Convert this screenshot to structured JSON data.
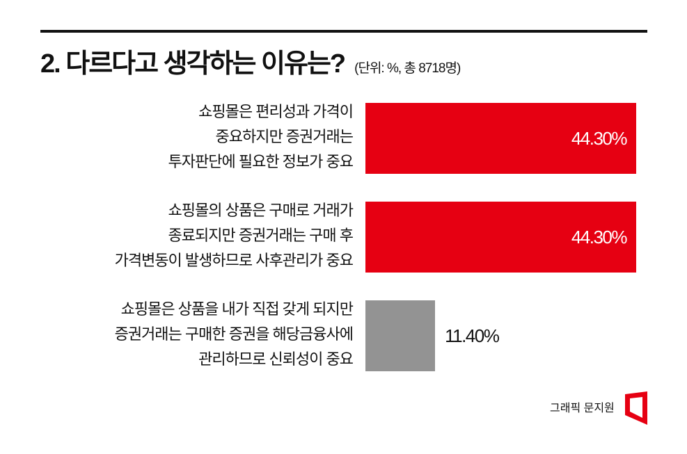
{
  "title": "2. 다르다고 생각하는 이유는?",
  "unit_note": "(단위: %, 총 8718명)",
  "credit": "그래픽 문지원",
  "colors": {
    "highlight": "#e60012",
    "other": "#939393",
    "text": "#111111",
    "value_on_bar": "#ffffff"
  },
  "chart_data": {
    "type": "bar",
    "orientation": "horizontal",
    "title": "2. 다르다고 생각하는 이유는?",
    "unit": "%",
    "total_respondents": 8718,
    "categories": [
      [
        "쇼핑몰은 편리성과 가격이",
        "중요하지만 증권거래는",
        "투자판단에 필요한 정보가 중요"
      ],
      [
        "쇼핑몰의 상품은 구매로 거래가",
        "종료되지만 증권거래는 구매 후",
        "가격변동이 발생하므로 사후관리가 중요"
      ],
      [
        "쇼핑몰은 상품을 내가 직접 갖게 되지만",
        "증권거래는 구매한 증권을 해당금융사에",
        "관리하므로 신뢰성이 중요"
      ]
    ],
    "values": [
      44.3,
      44.3,
      11.4
    ],
    "value_labels": [
      "44.30%",
      "44.30%",
      "11.40%"
    ],
    "bar_colors": [
      "#e60012",
      "#e60012",
      "#939393"
    ],
    "xlim": [
      0,
      44.3
    ],
    "grid": false
  }
}
